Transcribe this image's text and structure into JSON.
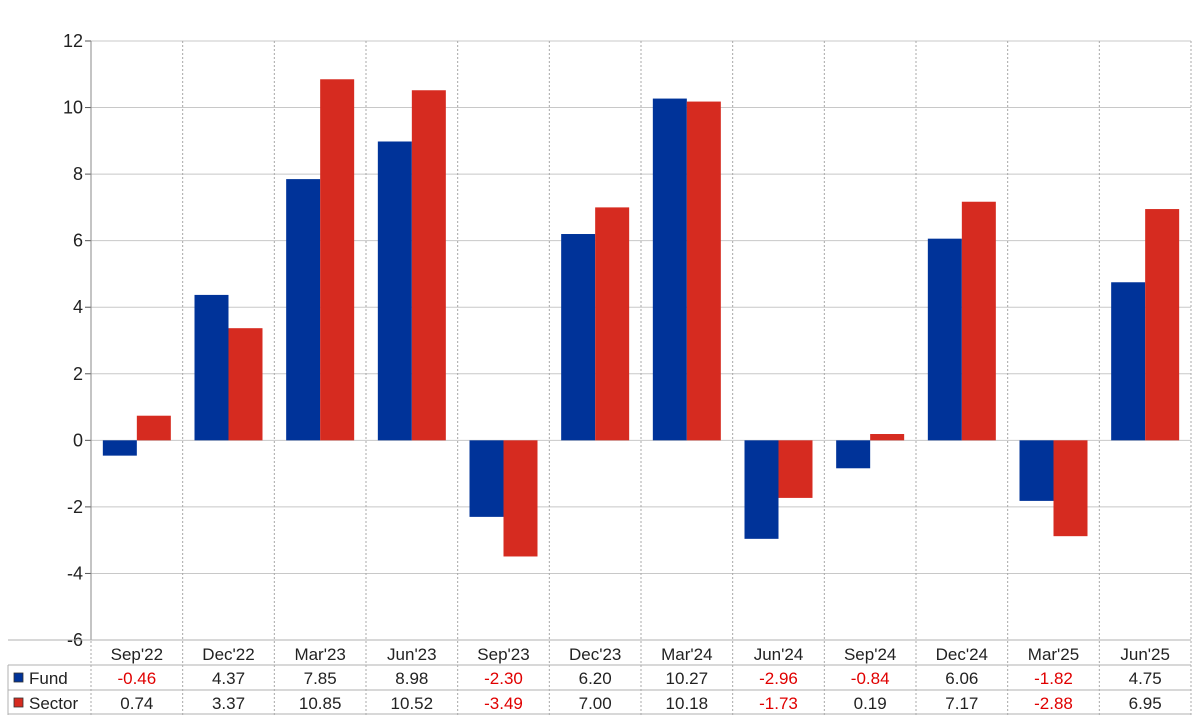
{
  "chart_data": {
    "type": "bar",
    "title": "",
    "xlabel": "",
    "ylabel": "",
    "ylim": [
      -6,
      12
    ],
    "yticks": [
      -6,
      -4,
      -2,
      0,
      2,
      4,
      6,
      8,
      10,
      12
    ],
    "grid": true,
    "legend": "data-table-left",
    "categories": [
      "Sep'22",
      "Dec'22",
      "Mar'23",
      "Jun'23",
      "Sep'23",
      "Dec'23",
      "Mar'24",
      "Jun'24",
      "Sep'24",
      "Dec'24",
      "Mar'25",
      "Jun'25"
    ],
    "series": [
      {
        "name": "Fund",
        "color": "#003399",
        "values": [
          -0.46,
          4.37,
          7.85,
          8.98,
          -2.3,
          6.2,
          10.27,
          -2.96,
          -0.84,
          6.06,
          -1.82,
          4.75
        ],
        "labels": [
          "-0.46",
          "4.37",
          "7.85",
          "8.98",
          "-2.30",
          "6.20",
          "10.27",
          "-2.96",
          "-0.84",
          "6.06",
          "-1.82",
          "4.75"
        ]
      },
      {
        "name": "Sector",
        "color": "#d62b20",
        "values": [
          0.74,
          3.37,
          10.85,
          10.52,
          -3.49,
          7.0,
          10.18,
          -1.73,
          0.19,
          7.17,
          -2.88,
          6.95
        ],
        "labels": [
          "0.74",
          "3.37",
          "10.85",
          "10.52",
          "-3.49",
          "7.00",
          "10.18",
          "-1.73",
          "0.19",
          "7.17",
          "-2.88",
          "6.95"
        ]
      }
    ],
    "negative_color": "#e00000",
    "text_color": "#222222"
  }
}
